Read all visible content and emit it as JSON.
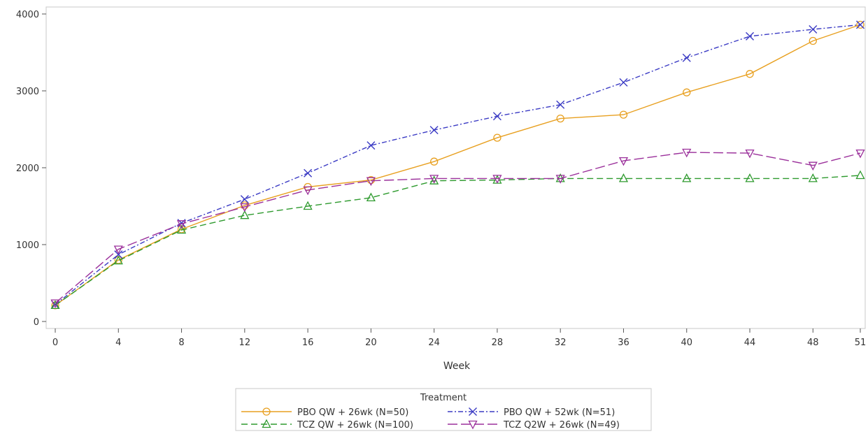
{
  "chart_data": {
    "type": "line",
    "title": "",
    "xlabel": "Week",
    "ylabel": "",
    "x": [
      0,
      4,
      8,
      12,
      16,
      20,
      24,
      28,
      32,
      36,
      40,
      44,
      48,
      51
    ],
    "xticks": [
      "0",
      "4",
      "8",
      "12",
      "16",
      "20",
      "24",
      "28",
      "32",
      "36",
      "40",
      "44",
      "48",
      "51"
    ],
    "yticks": [
      "0",
      "1000",
      "2000",
      "3000",
      "4000"
    ],
    "ylim": [
      0,
      4000
    ],
    "xlim": [
      0,
      51
    ],
    "grid": false,
    "legend": {
      "title": "Treatment",
      "placement": "bottom"
    },
    "series": [
      {
        "name": "PBO QW + 26wk (N=50)",
        "color": "#E8A020",
        "marker": "circle",
        "dash": "solid",
        "values": [
          210,
          800,
          1200,
          1510,
          1750,
          1840,
          2080,
          2390,
          2640,
          2690,
          2980,
          3220,
          3650,
          3860
        ]
      },
      {
        "name": "PBO QW + 52wk (N=51)",
        "color": "#3B3BC4",
        "marker": "x",
        "dash": "dashdot",
        "values": [
          220,
          870,
          1280,
          1590,
          1930,
          2290,
          2490,
          2670,
          2820,
          3110,
          3430,
          3710,
          3800,
          3860
        ]
      },
      {
        "name": "TCZ QW + 26wk (N=100)",
        "color": "#2E9A2E",
        "marker": "triangle-up",
        "dash": "dash",
        "values": [
          210,
          790,
          1190,
          1380,
          1500,
          1610,
          1830,
          1840,
          1860,
          1860,
          1860,
          1860,
          1860,
          1900
        ]
      },
      {
        "name": "TCZ Q2W + 26wk (N=49)",
        "color": "#9B309B",
        "marker": "triangle-down",
        "dash": "longdash",
        "values": [
          240,
          940,
          1270,
          1490,
          1710,
          1830,
          1860,
          1860,
          1860,
          2090,
          2200,
          2190,
          2030,
          2190
        ]
      }
    ]
  }
}
